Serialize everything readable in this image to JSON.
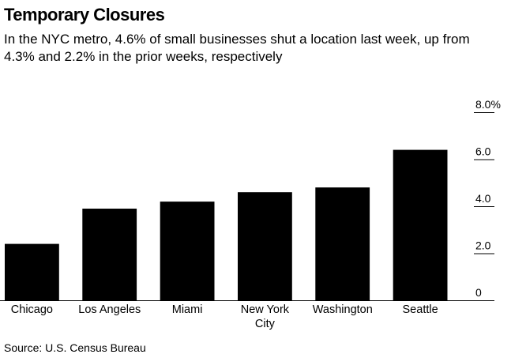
{
  "header": {
    "title": "Temporary Closures",
    "subtitle": "In the NYC metro, 4.6% of small businesses shut a location last week, up from 4.3% and 2.2% in the prior weeks, respectively"
  },
  "footer": {
    "source": "Source: U.S. Census Bureau"
  },
  "colors": {
    "bar": "#000000",
    "axis": "#000000",
    "background": "#ffffff"
  },
  "chart_data": {
    "type": "bar",
    "title": "Temporary Closures",
    "subtitle": "In the NYC metro, 4.6% of small businesses shut a location last week, up from 4.3% and 2.2% in the prior weeks, respectively",
    "categories": [
      [
        "Chicago"
      ],
      [
        "Los Angeles"
      ],
      [
        "Miami"
      ],
      [
        "New York",
        "City"
      ],
      [
        "Washington"
      ],
      [
        "Seattle"
      ]
    ],
    "values": [
      2.4,
      3.9,
      4.2,
      4.6,
      4.8,
      6.4
    ],
    "ylim": [
      0,
      8
    ],
    "yticks": [
      {
        "value": 0,
        "label": "0"
      },
      {
        "value": 2,
        "label": "2.0"
      },
      {
        "value": 4,
        "label": "4.0"
      },
      {
        "value": 6,
        "label": "6.0"
      },
      {
        "value": 8,
        "label": "8.0%"
      }
    ],
    "y_axis_side": "right",
    "grid": false,
    "xlabel": "",
    "ylabel": ""
  }
}
